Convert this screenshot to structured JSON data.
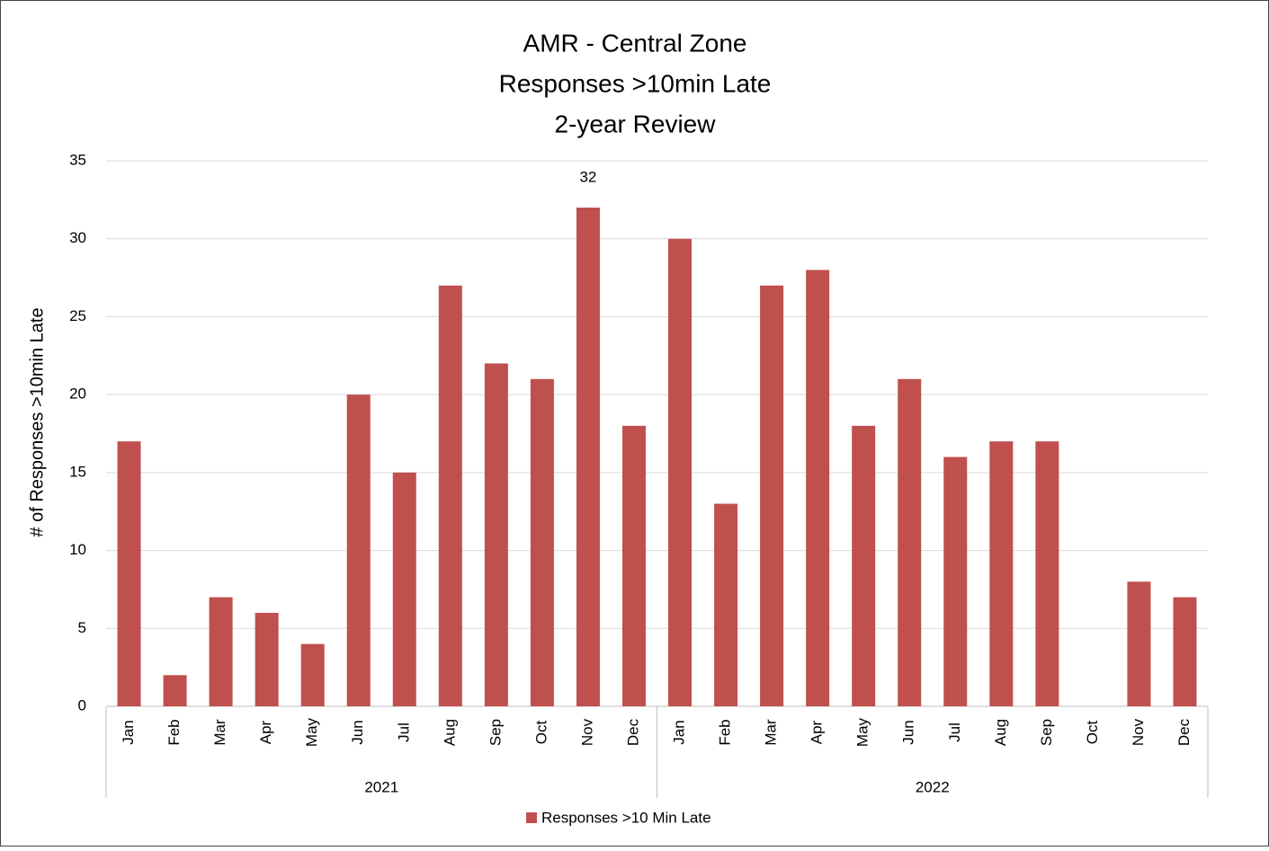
{
  "chart_data": {
    "type": "bar",
    "title": [
      "AMR - Central Zone",
      "Responses >10min Late",
      "2-year Review"
    ],
    "y_label": "# of Responses >10min Late",
    "categories": [
      "Jan",
      "Feb",
      "Mar",
      "Apr",
      "May",
      "Jun",
      "Jul",
      "Aug",
      "Sep",
      "Oct",
      "Nov",
      "Dec",
      "Jan",
      "Feb",
      "Mar",
      "Apr",
      "May",
      "Jun",
      "Jul",
      "Aug",
      "Sep",
      "Oct",
      "Nov",
      "Dec"
    ],
    "groups": [
      "2021",
      "2022"
    ],
    "series": [
      {
        "name": "Responses >10 Min Late",
        "color": "#c0504d",
        "values": [
          17,
          2,
          7,
          6,
          4,
          20,
          15,
          27,
          22,
          21,
          32,
          18,
          30,
          13,
          27,
          28,
          18,
          21,
          16,
          17,
          17,
          0,
          8,
          7
        ],
        "value_labels": [
          null,
          null,
          null,
          null,
          null,
          null,
          null,
          null,
          null,
          null,
          "32",
          null,
          null,
          null,
          null,
          null,
          null,
          null,
          null,
          null,
          null,
          null,
          null,
          null
        ]
      }
    ],
    "ylim": [
      0,
      35
    ],
    "yticks": [
      0,
      5,
      10,
      15,
      20,
      25,
      30,
      35
    ],
    "grid": true,
    "legend": "bottom"
  }
}
